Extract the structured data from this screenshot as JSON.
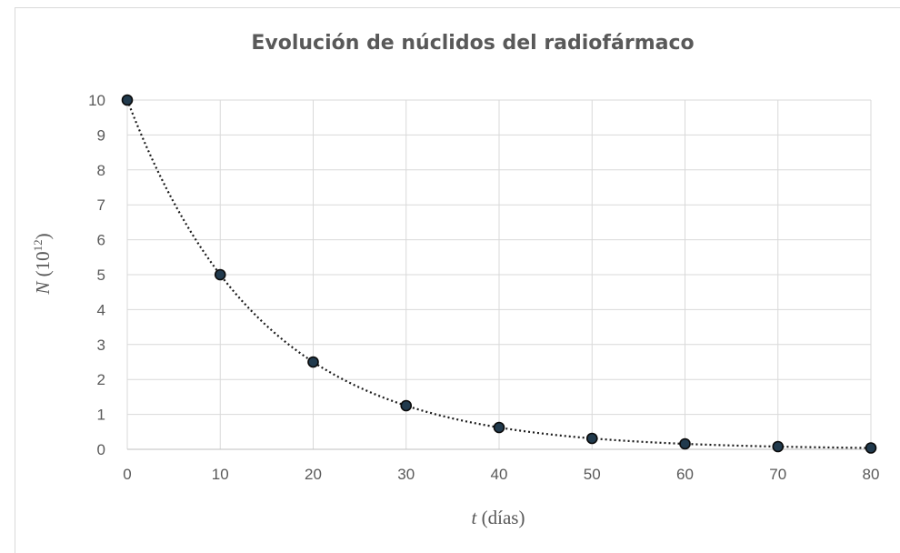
{
  "chart_data": {
    "type": "scatter",
    "title": "Evolución de núclidos del radiofármaco",
    "xlabel_var": "t",
    "xlabel_unit": "(días)",
    "ylabel_var": "N",
    "ylabel_base": "(10",
    "ylabel_exp": "12",
    "ylabel_close": ")",
    "x": [
      0,
      10,
      20,
      30,
      40,
      50,
      60,
      70,
      80
    ],
    "y": [
      10,
      5,
      2.5,
      1.25,
      0.625,
      0.3125,
      0.15625,
      0.078,
      0.039
    ],
    "xlim": [
      0,
      80
    ],
    "ylim": [
      0,
      10
    ],
    "x_ticks": [
      "0",
      "10",
      "20",
      "30",
      "40",
      "50",
      "60",
      "70",
      "80"
    ],
    "y_ticks": [
      "0",
      "1",
      "2",
      "3",
      "4",
      "5",
      "6",
      "7",
      "8",
      "9",
      "10"
    ],
    "trendline": "exponential, dotted",
    "grid": true,
    "marker_color": "#213a4d",
    "line_color": "#1a1a1a"
  }
}
